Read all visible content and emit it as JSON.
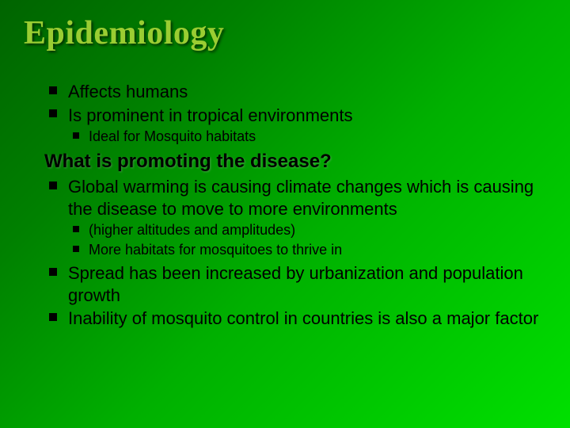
{
  "slide": {
    "title": "Epidemiology",
    "title_fontsize": 42,
    "title_color": "#9acd32",
    "background_gradient": [
      "#006400",
      "#008000",
      "#00b000",
      "#00e000"
    ],
    "body_text_color": "#000000",
    "fontsize_lvl1": 22,
    "fontsize_lvl2": 18,
    "fontsize_subhead": 24,
    "sections": [
      {
        "type": "bullets",
        "items": [
          {
            "text": "Affects humans"
          },
          {
            "text": "Is prominent in tropical environments",
            "sub": [
              {
                "text": "Ideal for Mosquito habitats"
              }
            ]
          }
        ]
      },
      {
        "type": "subhead",
        "text": "What is promoting the disease?"
      },
      {
        "type": "bullets",
        "items": [
          {
            "text": "Global warming is causing climate changes which is causing the disease to move to more environments",
            "sub": [
              {
                "text": "(higher altitudes and amplitudes)"
              },
              {
                "text": "More habitats for mosquitoes to thrive in"
              }
            ]
          },
          {
            "text": "Spread has been increased by urbanization and population growth"
          },
          {
            "text": "Inability of mosquito control in countries is also a major factor"
          }
        ]
      }
    ]
  }
}
